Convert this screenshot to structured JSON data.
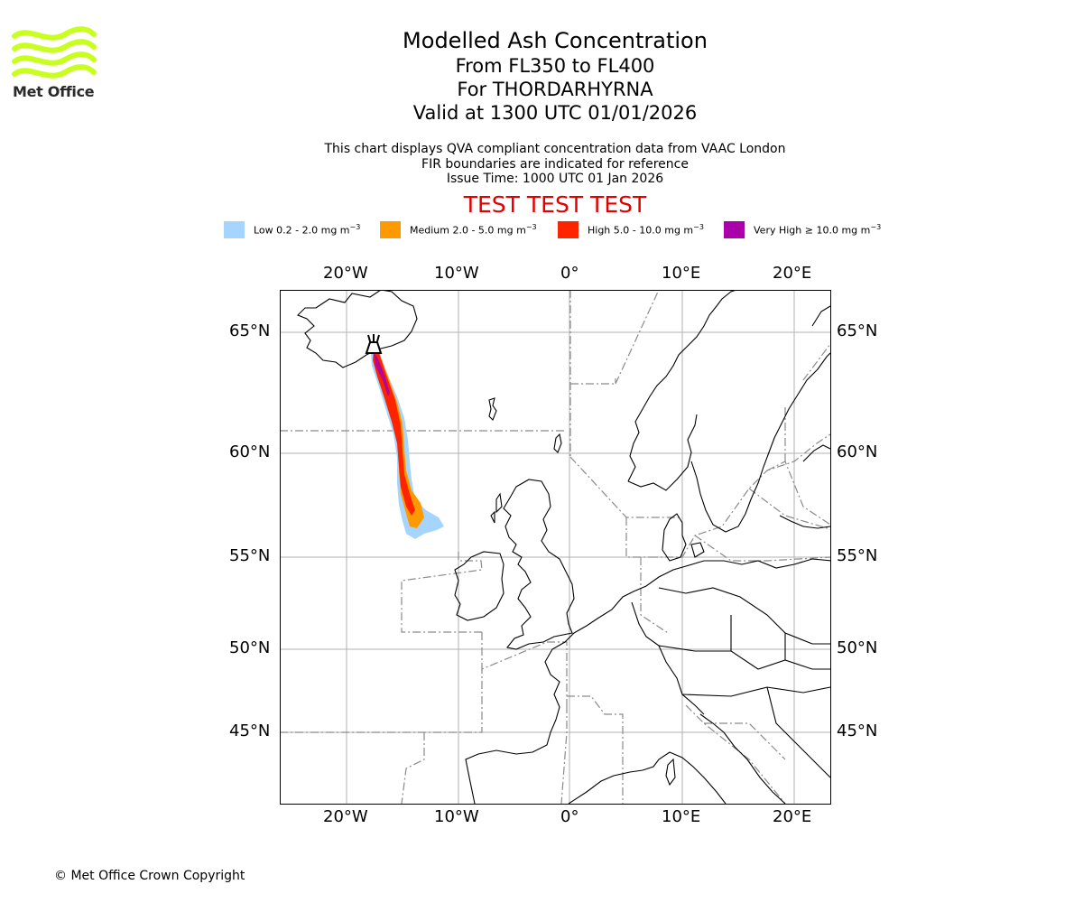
{
  "header": {
    "title": "Modelled Ash Concentration",
    "levels": "From FL350 to FL400",
    "volcano": "For THORDARHYRNA",
    "valid": "Valid at 1300 UTC 01/01/2026"
  },
  "notes": {
    "line1": "This chart displays QVA compliant concentration data from VAAC London",
    "line2": "FIR boundaries are indicated for reference",
    "issue": "Issue Time: 1000 UTC 01 Jan 2026"
  },
  "test_banner": "TEST TEST TEST",
  "logo": {
    "text": "Met Office"
  },
  "legend": [
    {
      "label_pre": "Low 0.2 - 2.0 mg m",
      "unit_exp": "−3",
      "color": "#a5d5ff"
    },
    {
      "label_pre": "Medium 2.0 - 5.0 mg m",
      "unit_exp": "−3",
      "color": "#ff9900"
    },
    {
      "label_pre": "High 5.0 - 10.0 mg m",
      "unit_exp": "−3",
      "color": "#ff2400"
    },
    {
      "label_pre": "Very High ≥ 10.0 mg m",
      "unit_exp": "−3",
      "color": "#aa00aa"
    }
  ],
  "axes": {
    "lon_labels": [
      "20°W",
      "10°W",
      "0°",
      "10°E",
      "20°E"
    ],
    "lat_labels": [
      "65°N",
      "60°N",
      "55°N",
      "50°N",
      "45°N"
    ]
  },
  "map": {
    "volcano_icon": "volcano-icon",
    "colors": {
      "grid": "#b0b0b0",
      "coast": "#000000",
      "fir": "#8a8a8a"
    }
  },
  "footer": {
    "copyright": "© Met Office Crown Copyright"
  }
}
